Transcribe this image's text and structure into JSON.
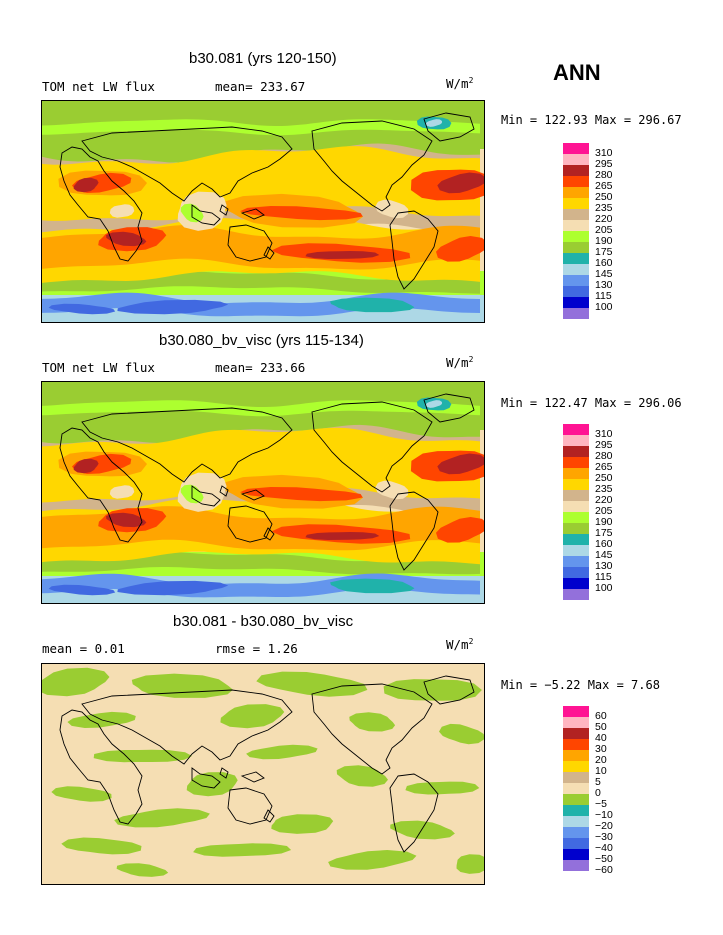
{
  "season": "ANN",
  "colors": {
    "field": [
      "#9370DB",
      "#0000CD",
      "#4169E1",
      "#6495ED",
      "#ADD8E6",
      "#20B2AA",
      "#9ACD32",
      "#ADFF2F",
      "#F5DEB3",
      "#D2B48C",
      "#FFD700",
      "#FFA500",
      "#FF4500",
      "#B22222",
      "#FFB6C1",
      "#FF1493"
    ],
    "diff": [
      "#9370DB",
      "#0000CD",
      "#4169E1",
      "#6495ED",
      "#ADD8E6",
      "#20B2AA",
      "#9ACD32",
      "#F5DEB3",
      "#D2B48C",
      "#FFD700",
      "#FFA500",
      "#FF4500",
      "#B22222",
      "#FFB6C1",
      "#FF1493"
    ],
    "land_outline": "#000000"
  },
  "panels": [
    {
      "title": "b30.081 (yrs 120-150)",
      "left_label": "TOM net LW flux",
      "mean_label": "mean= 233.67",
      "units": "W/m",
      "units_exp": "2",
      "minmax": "Min = 122.93 Max = 296.67",
      "min": 122.93,
      "max": 296.67,
      "levels": [
        "310",
        "295",
        "280",
        "265",
        "250",
        "235",
        "220",
        "205",
        "190",
        "175",
        "160",
        "145",
        "130",
        "115",
        "100"
      ]
    },
    {
      "title": "b30.080_bv_visc (yrs 115-134)",
      "left_label": "TOM net LW flux",
      "mean_label": "mean= 233.66",
      "units": "W/m",
      "units_exp": "2",
      "minmax": "Min = 122.47 Max = 296.06",
      "min": 122.47,
      "max": 296.06,
      "levels": [
        "310",
        "295",
        "280",
        "265",
        "250",
        "235",
        "220",
        "205",
        "190",
        "175",
        "160",
        "145",
        "130",
        "115",
        "100"
      ]
    },
    {
      "title": "b30.081 - b30.080_bv_visc",
      "left_label": "mean =    0.01",
      "mean_label": "rmse =    1.26",
      "units": "W/m",
      "units_exp": "2",
      "minmax": "Min =  −5.22 Max =    7.68",
      "min": -5.22,
      "max": 7.68,
      "levels": [
        "60",
        "50",
        "40",
        "30",
        "20",
        "10",
        "5",
        "0",
        "−5",
        "−10",
        "−20",
        "−30",
        "−40",
        "−50",
        "−60"
      ]
    }
  ]
}
